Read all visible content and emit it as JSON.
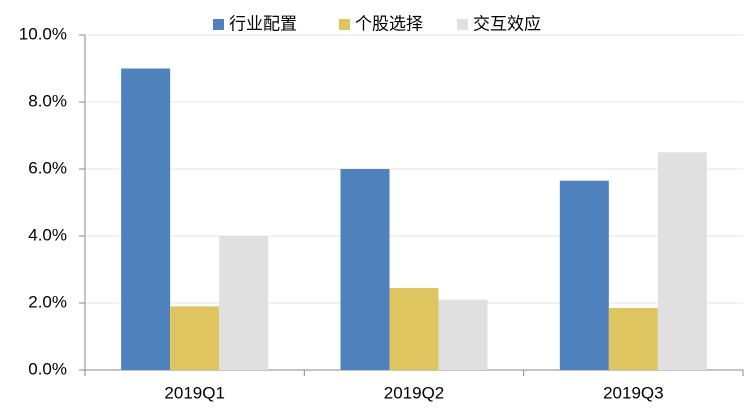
{
  "chart_data": {
    "type": "bar",
    "categories": [
      "2019Q1",
      "2019Q2",
      "2019Q3"
    ],
    "series": [
      {
        "name": "行业配置",
        "color": "#4f81bd",
        "values": [
          9.0,
          6.0,
          5.65
        ]
      },
      {
        "name": "个股选择",
        "color": "#dfc55f",
        "values": [
          1.9,
          2.45,
          1.85
        ]
      },
      {
        "name": "交互效应",
        "color": "#e0e0e0",
        "values": [
          4.0,
          2.1,
          6.5
        ]
      }
    ],
    "ylim": [
      0,
      10
    ],
    "yticks": [
      {
        "value": 0,
        "label": "0.0%"
      },
      {
        "value": 2,
        "label": "2.0%"
      },
      {
        "value": 4,
        "label": "4.0%"
      },
      {
        "value": 6,
        "label": "6.0%"
      },
      {
        "value": 8,
        "label": "8.0%"
      },
      {
        "value": 10,
        "label": "10.0%"
      }
    ],
    "grid": true,
    "legend": "top"
  }
}
